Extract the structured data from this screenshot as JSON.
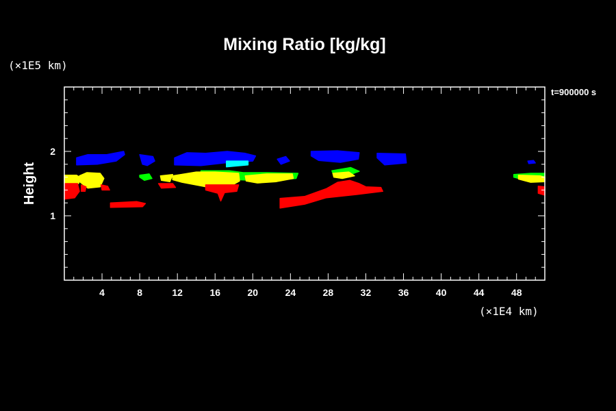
{
  "chart_data": {
    "type": "heatmap",
    "title": "Mixing Ratio [kg/kg]",
    "ylabel": "Height",
    "x_unit": "(×1E4 km)",
    "y_unit": "(×1E5 km)",
    "time_label": "t=900000 s",
    "xlim": [
      0,
      51
    ],
    "ylim": [
      0,
      3
    ],
    "x_ticks": [
      4,
      8,
      12,
      16,
      20,
      24,
      28,
      32,
      36,
      40,
      44,
      48
    ],
    "y_ticks": [
      1,
      2
    ],
    "colors": {
      "background": "#000000",
      "axes": "#ffffff",
      "blue": "#0000ff",
      "cyan": "#00ffff",
      "green": "#00ff00",
      "yellow": "#ffff00",
      "red": "#ff0000"
    },
    "regions": [
      {
        "color": "blue",
        "points": [
          [
            1.3,
            1.9
          ],
          [
            2.5,
            1.95
          ],
          [
            4.5,
            1.95
          ],
          [
            6.3,
            2.0
          ],
          [
            6.4,
            1.95
          ],
          [
            5.5,
            1.85
          ],
          [
            3.5,
            1.8
          ],
          [
            1.3,
            1.79
          ]
        ]
      },
      {
        "color": "blue",
        "points": [
          [
            8.0,
            1.95
          ],
          [
            9.4,
            1.92
          ],
          [
            9.6,
            1.85
          ],
          [
            8.8,
            1.78
          ],
          [
            8.3,
            1.8
          ]
        ]
      },
      {
        "color": "blue",
        "points": [
          [
            11.7,
            1.9
          ],
          [
            13.0,
            1.98
          ],
          [
            15.0,
            1.97
          ],
          [
            17.3,
            2.0
          ],
          [
            19.2,
            1.97
          ],
          [
            20.3,
            1.93
          ],
          [
            20.0,
            1.85
          ],
          [
            17.0,
            1.82
          ],
          [
            14.5,
            1.78
          ],
          [
            11.7,
            1.79
          ]
        ]
      },
      {
        "color": "blue",
        "points": [
          [
            22.6,
            1.88
          ],
          [
            23.5,
            1.92
          ],
          [
            23.9,
            1.85
          ],
          [
            23.0,
            1.8
          ]
        ]
      },
      {
        "color": "blue",
        "points": [
          [
            26.2,
            2.0
          ],
          [
            29.0,
            2.01
          ],
          [
            31.3,
            1.98
          ],
          [
            31.2,
            1.88
          ],
          [
            29.3,
            1.83
          ],
          [
            27.0,
            1.86
          ],
          [
            26.2,
            1.93
          ]
        ]
      },
      {
        "color": "blue",
        "points": [
          [
            33.2,
            1.97
          ],
          [
            36.2,
            1.96
          ],
          [
            36.3,
            1.82
          ],
          [
            34.0,
            1.79
          ],
          [
            33.2,
            1.9
          ]
        ]
      },
      {
        "color": "blue",
        "points": [
          [
            49.2,
            1.85
          ],
          [
            49.8,
            1.86
          ],
          [
            50.0,
            1.82
          ],
          [
            49.3,
            1.81
          ]
        ]
      },
      {
        "color": "cyan",
        "points": [
          [
            17.2,
            1.85
          ],
          [
            19.5,
            1.85
          ],
          [
            19.5,
            1.79
          ],
          [
            17.2,
            1.76
          ]
        ]
      },
      {
        "color": "green",
        "points": [
          [
            8.0,
            1.63
          ],
          [
            9.0,
            1.65
          ],
          [
            9.3,
            1.58
          ],
          [
            8.5,
            1.55
          ],
          [
            8.0,
            1.6
          ]
        ]
      },
      {
        "color": "green",
        "points": [
          [
            14.5,
            1.7
          ],
          [
            17.5,
            1.7
          ],
          [
            19.0,
            1.67
          ],
          [
            21.5,
            1.67
          ],
          [
            24.8,
            1.66
          ],
          [
            24.6,
            1.58
          ],
          [
            22.0,
            1.55
          ],
          [
            19.8,
            1.55
          ],
          [
            17.0,
            1.57
          ],
          [
            14.5,
            1.62
          ]
        ]
      },
      {
        "color": "green",
        "points": [
          [
            28.4,
            1.7
          ],
          [
            30.4,
            1.75
          ],
          [
            31.3,
            1.69
          ],
          [
            30.0,
            1.62
          ],
          [
            28.6,
            1.62
          ]
        ]
      },
      {
        "color": "green",
        "points": [
          [
            47.7,
            1.64
          ],
          [
            49.5,
            1.66
          ],
          [
            51.0,
            1.66
          ],
          [
            51.0,
            1.57
          ],
          [
            49.0,
            1.55
          ],
          [
            47.7,
            1.6
          ]
        ]
      },
      {
        "color": "yellow",
        "points": [
          [
            0.0,
            1.63
          ],
          [
            1.3,
            1.63
          ],
          [
            1.8,
            1.58
          ],
          [
            1.5,
            1.5
          ],
          [
            0.0,
            1.5
          ]
        ]
      },
      {
        "color": "yellow",
        "points": [
          [
            1.6,
            1.62
          ],
          [
            2.4,
            1.67
          ],
          [
            3.8,
            1.66
          ],
          [
            4.2,
            1.58
          ],
          [
            3.8,
            1.45
          ],
          [
            2.5,
            1.43
          ],
          [
            1.7,
            1.52
          ]
        ]
      },
      {
        "color": "yellow",
        "points": [
          [
            10.2,
            1.62
          ],
          [
            11.5,
            1.64
          ],
          [
            11.2,
            1.53
          ],
          [
            10.3,
            1.55
          ]
        ]
      },
      {
        "color": "yellow",
        "points": [
          [
            11.5,
            1.62
          ],
          [
            14.0,
            1.68
          ],
          [
            16.0,
            1.68
          ],
          [
            18.5,
            1.66
          ],
          [
            18.6,
            1.54
          ],
          [
            17.5,
            1.45
          ],
          [
            15.0,
            1.45
          ],
          [
            12.5,
            1.52
          ],
          [
            11.5,
            1.56
          ]
        ]
      },
      {
        "color": "yellow",
        "points": [
          [
            19.2,
            1.62
          ],
          [
            21.5,
            1.65
          ],
          [
            24.2,
            1.65
          ],
          [
            24.3,
            1.58
          ],
          [
            22.5,
            1.53
          ],
          [
            20.5,
            1.51
          ],
          [
            19.3,
            1.54
          ]
        ]
      },
      {
        "color": "yellow",
        "points": [
          [
            28.5,
            1.66
          ],
          [
            30.2,
            1.68
          ],
          [
            30.8,
            1.62
          ],
          [
            29.5,
            1.58
          ],
          [
            28.6,
            1.6
          ]
        ]
      },
      {
        "color": "yellow",
        "points": [
          [
            48.2,
            1.63
          ],
          [
            50.5,
            1.62
          ],
          [
            51.0,
            1.6
          ],
          [
            51.0,
            1.53
          ],
          [
            49.5,
            1.52
          ],
          [
            48.2,
            1.57
          ]
        ]
      },
      {
        "color": "red",
        "points": [
          [
            0.0,
            1.5
          ],
          [
            1.4,
            1.5
          ],
          [
            1.6,
            1.38
          ],
          [
            1.1,
            1.28
          ],
          [
            0.0,
            1.26
          ]
        ]
      },
      {
        "color": "red",
        "points": [
          [
            1.8,
            1.48
          ],
          [
            2.3,
            1.45
          ],
          [
            2.2,
            1.38
          ],
          [
            1.8,
            1.38
          ]
        ]
      },
      {
        "color": "red",
        "points": [
          [
            3.9,
            1.48
          ],
          [
            4.6,
            1.46
          ],
          [
            4.8,
            1.4
          ],
          [
            4.0,
            1.4
          ]
        ]
      },
      {
        "color": "red",
        "points": [
          [
            10.0,
            1.5
          ],
          [
            11.5,
            1.5
          ],
          [
            11.8,
            1.44
          ],
          [
            10.3,
            1.43
          ]
        ]
      },
      {
        "color": "red",
        "points": [
          [
            15.0,
            1.48
          ],
          [
            18.5,
            1.48
          ],
          [
            18.3,
            1.38
          ],
          [
            17.0,
            1.36
          ],
          [
            16.6,
            1.23
          ],
          [
            16.3,
            1.35
          ],
          [
            15.0,
            1.4
          ]
        ]
      },
      {
        "color": "red",
        "points": [
          [
            4.9,
            1.2
          ],
          [
            7.7,
            1.22
          ],
          [
            8.6,
            1.19
          ],
          [
            8.3,
            1.14
          ],
          [
            4.9,
            1.13
          ]
        ]
      },
      {
        "color": "red",
        "points": [
          [
            22.9,
            1.27
          ],
          [
            25.5,
            1.3
          ],
          [
            27.8,
            1.42
          ],
          [
            29.0,
            1.52
          ],
          [
            30.3,
            1.55
          ],
          [
            31.3,
            1.5
          ],
          [
            32.0,
            1.45
          ],
          [
            33.6,
            1.44
          ],
          [
            33.8,
            1.38
          ],
          [
            31.0,
            1.33
          ],
          [
            27.8,
            1.28
          ],
          [
            25.5,
            1.18
          ],
          [
            22.9,
            1.12
          ]
        ]
      },
      {
        "color": "red",
        "points": [
          [
            50.3,
            1.46
          ],
          [
            51.0,
            1.45
          ],
          [
            51.0,
            1.32
          ],
          [
            50.3,
            1.35
          ]
        ]
      }
    ]
  }
}
